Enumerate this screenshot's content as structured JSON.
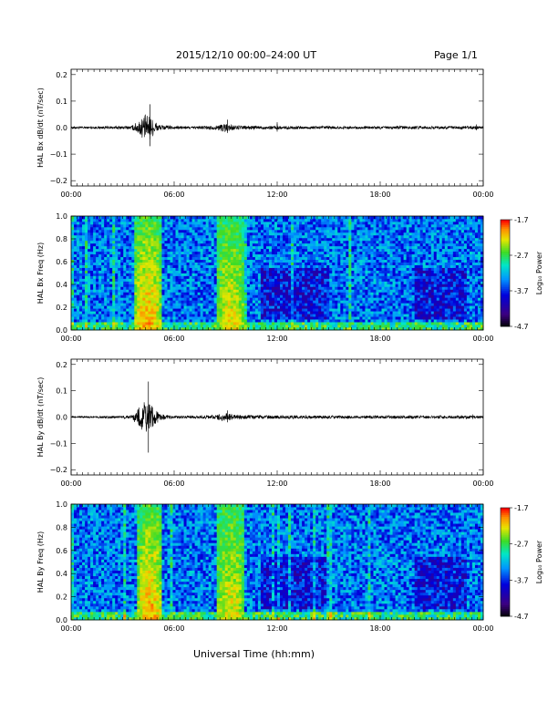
{
  "header": {
    "title": "2015/12/10  00:00–24:00 UT",
    "page": "Page 1/1"
  },
  "xaxis_label": "Universal Time (hh:mm)",
  "chart_data": [
    {
      "type": "line",
      "ylabel": "HAL Bx dB/dt (nT/sec)",
      "xlim": [
        "00:00",
        "24:00"
      ],
      "ylim": [
        -0.22,
        0.22
      ],
      "yticks": [
        "0.2",
        "0.1",
        "0.0",
        "−0.1",
        "−0.2"
      ],
      "yticks_values": [
        0.2,
        0.1,
        0.0,
        -0.1,
        -0.2
      ],
      "xticks": [
        "00:00",
        "06:00",
        "12:00",
        "18:00",
        "00:00"
      ],
      "series": [
        {
          "values_hours": [
            0,
            1,
            2,
            3.5,
            4.0,
            4.3,
            4.6,
            4.9,
            5.2,
            6,
            7,
            8.5,
            9.0,
            9.3,
            9.6,
            10.5,
            12,
            13,
            15,
            17,
            19,
            21,
            23.5,
            24
          ],
          "envelope": [
            0.004,
            0.004,
            0.005,
            0.006,
            0.03,
            0.05,
            0.04,
            0.025,
            0.01,
            0.006,
            0.005,
            0.008,
            0.02,
            0.012,
            0.008,
            0.007,
            0.006,
            0.006,
            0.006,
            0.005,
            0.006,
            0.005,
            0.006,
            0.004
          ],
          "peaks": [
            [
              4.6,
              0.088,
              -0.07
            ],
            [
              9.1,
              0.03,
              -0.02
            ],
            [
              12.0,
              0.02,
              -0.015
            ],
            [
              23.6,
              0.012,
              -0.01
            ]
          ]
        }
      ]
    },
    {
      "type": "heatmap",
      "ylabel": "HAL Bx Freq (Hz)",
      "xlim": [
        "00:00",
        "24:00"
      ],
      "ylim": [
        0.0,
        1.0
      ],
      "yticks": [
        "1.0",
        "0.8",
        "0.6",
        "0.4",
        "0.2",
        "0.0"
      ],
      "yticks_values": [
        1.0,
        0.8,
        0.6,
        0.4,
        0.2,
        0.0
      ],
      "xticks": [
        "00:00",
        "06:00",
        "12:00",
        "18:00",
        "00:00"
      ],
      "colorbar": {
        "label": "Log₁₀ Power",
        "range": [
          -4.7,
          -1.7
        ],
        "ticks": [
          "-1.7",
          "-2.7",
          "-3.7",
          "-4.7"
        ],
        "ticks_values": [
          -1.7,
          -2.7,
          -3.7,
          -4.7
        ]
      },
      "bright_bands_hours": [
        [
          3.7,
          5.2
        ],
        [
          8.5,
          10.1
        ]
      ]
    },
    {
      "type": "line",
      "ylabel": "HAL By dB/dt (nT/sec)",
      "xlim": [
        "00:00",
        "24:00"
      ],
      "ylim": [
        -0.22,
        0.22
      ],
      "yticks": [
        "0.2",
        "0.1",
        "0.0",
        "−0.1",
        "−0.2"
      ],
      "yticks_values": [
        0.2,
        0.1,
        0.0,
        -0.1,
        -0.2
      ],
      "xticks": [
        "00:00",
        "06:00",
        "12:00",
        "18:00",
        "00:00"
      ],
      "series": [
        {
          "values_hours": [
            0,
            1,
            2,
            3.5,
            4.0,
            4.3,
            4.6,
            4.9,
            5.2,
            6,
            7,
            8.5,
            9.0,
            9.3,
            9.6,
            10.5,
            12,
            13,
            15,
            17,
            19,
            21,
            23.5,
            24
          ],
          "envelope": [
            0.003,
            0.003,
            0.004,
            0.006,
            0.04,
            0.06,
            0.05,
            0.03,
            0.012,
            0.005,
            0.005,
            0.008,
            0.02,
            0.012,
            0.008,
            0.007,
            0.006,
            0.006,
            0.006,
            0.005,
            0.006,
            0.005,
            0.006,
            0.004
          ],
          "peaks": [
            [
              4.5,
              0.135,
              -0.135
            ],
            [
              9.1,
              0.025,
              -0.02
            ],
            [
              23.4,
              0.01,
              -0.008
            ]
          ]
        }
      ]
    },
    {
      "type": "heatmap",
      "ylabel": "HAL By Freq (Hz)",
      "xlim": [
        "00:00",
        "24:00"
      ],
      "ylim": [
        0.0,
        1.0
      ],
      "yticks": [
        "1.0",
        "0.8",
        "0.6",
        "0.4",
        "0.2",
        "0.0"
      ],
      "yticks_values": [
        1.0,
        0.8,
        0.6,
        0.4,
        0.2,
        0.0
      ],
      "xticks": [
        "00:00",
        "06:00",
        "12:00",
        "18:00",
        "00:00"
      ],
      "colorbar": {
        "label": "Log₁₀ Power",
        "range": [
          -4.7,
          -1.7
        ],
        "ticks": [
          "-1.7",
          "-2.7",
          "-3.7",
          "-4.7"
        ],
        "ticks_values": [
          -1.7,
          -2.7,
          -3.7,
          -4.7
        ]
      },
      "bright_bands_hours": [
        [
          3.9,
          5.3
        ],
        [
          8.5,
          10.1
        ]
      ]
    }
  ]
}
